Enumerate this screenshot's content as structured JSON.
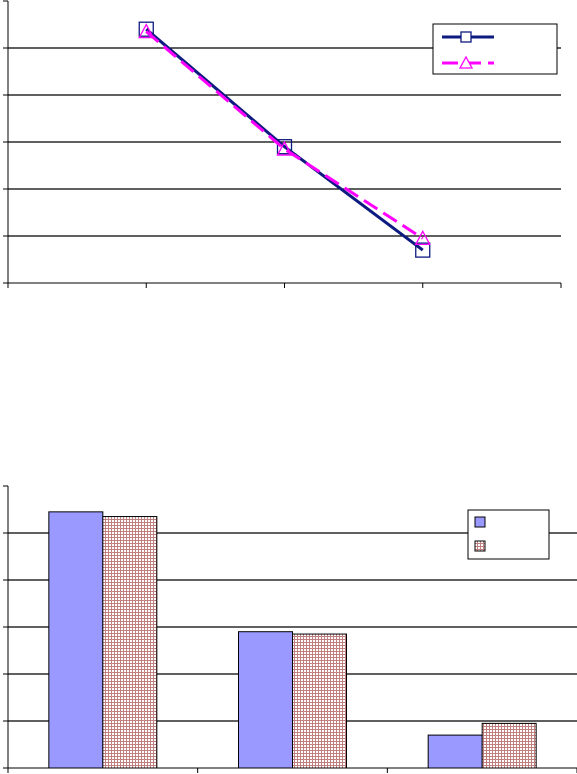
{
  "chart_data": [
    {
      "type": "line",
      "x": [
        1,
        2,
        3
      ],
      "series": [
        {
          "values": [
            5.4,
            2.9,
            0.7
          ],
          "color": "#0d1a80",
          "marker": "square",
          "line_style": "solid"
        },
        {
          "values": [
            5.35,
            2.85,
            0.95
          ],
          "color": "#ff00ff",
          "marker": "triangle",
          "line_style": "dashed"
        }
      ],
      "xlim": [
        0,
        4
      ],
      "ylim": [
        0,
        6
      ],
      "grid": true,
      "legend_position": "top-right"
    },
    {
      "type": "bar",
      "categories_count": 3,
      "series": [
        {
          "values": [
            5.45,
            2.9,
            0.7
          ],
          "color": "#9999ff",
          "fill": "solid"
        },
        {
          "values": [
            5.35,
            2.85,
            0.95
          ],
          "color": "#c08080",
          "fill": "crosshatch"
        }
      ],
      "ylim": [
        0,
        6
      ],
      "grid": true,
      "legend_position": "top-right"
    }
  ]
}
